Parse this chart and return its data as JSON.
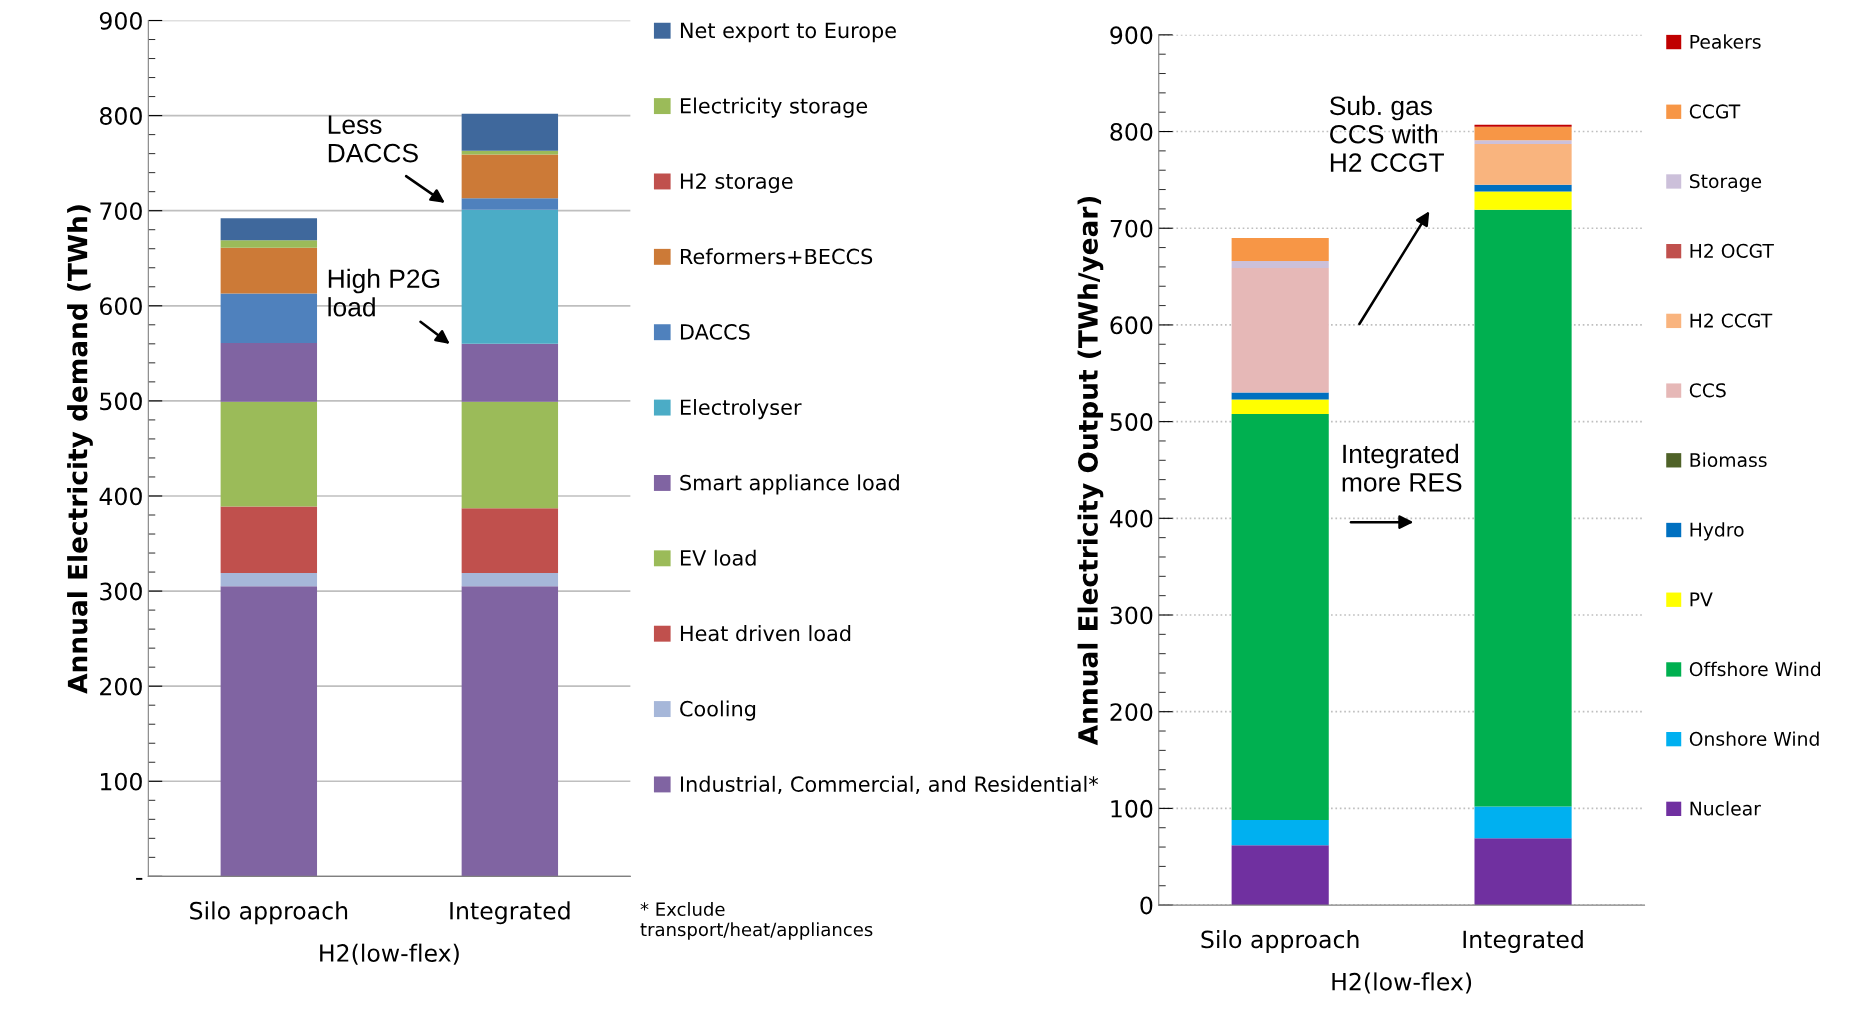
{
  "chart_data": [
    {
      "type": "bar",
      "stacked": true,
      "categories": [
        "Silo approach",
        "Integrated"
      ],
      "xlabel": "H2(low-flex)",
      "ylabel": "Annual Electricity demand (TWh)",
      "ylim": [
        0,
        900
      ],
      "yticks": [
        {
          "value": 0,
          "label": "-"
        },
        100,
        200,
        300,
        400,
        500,
        600,
        700,
        800,
        900
      ],
      "grid": "y",
      "legend": "right",
      "series": [
        {
          "name": "Industrial, Commercial, and Residential*",
          "color": "#8064a2",
          "values": [
            305,
            305
          ]
        },
        {
          "name": "Cooling",
          "color": "#a6b7d9",
          "values": [
            14,
            14
          ]
        },
        {
          "name": "Heat driven load",
          "color": "#c0504d",
          "values": [
            70,
            68
          ]
        },
        {
          "name": "EV load",
          "color": "#9bbb59",
          "values": [
            110,
            112
          ]
        },
        {
          "name": "Smart appliance load",
          "color": "#8064a2",
          "values": [
            62,
            61
          ]
        },
        {
          "name": "Electrolyser",
          "color": "#4bacc6",
          "values": [
            0,
            141
          ]
        },
        {
          "name": "DACCS",
          "color": "#4f81bd",
          "values": [
            52,
            12
          ]
        },
        {
          "name": "Reformers+BECCS",
          "color": "#cc7a37",
          "values": [
            48,
            46
          ]
        },
        {
          "name": "H2 storage",
          "color": "#c0504d",
          "values": [
            0,
            0
          ]
        },
        {
          "name": "Electricity storage",
          "color": "#9bbb59",
          "values": [
            8,
            4
          ]
        },
        {
          "name": "Net export to Europe",
          "color": "#3f689c",
          "values": [
            23,
            39
          ]
        }
      ],
      "annotations": [
        "Less\nDACCS",
        "High P2G\nload",
        "* Exclude\ntransport/heat/appliances"
      ]
    },
    {
      "type": "bar",
      "stacked": true,
      "categories": [
        "Silo approach",
        "Integrated"
      ],
      "xlabel": "H2(low-flex)",
      "ylabel": "Annual Electricity Output (TWh/year)",
      "ylim": [
        0,
        900
      ],
      "yticks": [
        0,
        100,
        200,
        300,
        400,
        500,
        600,
        700,
        800,
        900
      ],
      "grid": "y",
      "legend": "right",
      "series": [
        {
          "name": "Nuclear",
          "color": "#7030a0",
          "values": [
            62,
            69
          ]
        },
        {
          "name": "Onshore Wind",
          "color": "#00b0f0",
          "values": [
            26,
            33
          ]
        },
        {
          "name": "Offshore Wind",
          "color": "#00b050",
          "values": [
            420,
            617
          ]
        },
        {
          "name": "PV",
          "color": "#ffff00",
          "values": [
            15,
            19
          ]
        },
        {
          "name": "Hydro",
          "color": "#0070c0",
          "values": [
            7,
            7
          ]
        },
        {
          "name": "Biomass",
          "color": "#4f6228",
          "values": [
            0,
            0
          ]
        },
        {
          "name": "CCS",
          "color": "#e6b8b7",
          "values": [
            129,
            0
          ]
        },
        {
          "name": "H2 CCGT",
          "color": "#f9b47e",
          "values": [
            0,
            42
          ]
        },
        {
          "name": "H2 OCGT",
          "color": "#c0504d",
          "values": [
            0,
            0
          ]
        },
        {
          "name": "Storage",
          "color": "#ccc0da",
          "values": [
            7,
            4
          ]
        },
        {
          "name": "CCGT",
          "color": "#f79646",
          "values": [
            24,
            14
          ]
        },
        {
          "name": "Peakers",
          "color": "#c00000",
          "values": [
            0,
            2
          ]
        }
      ],
      "annotations": [
        "Sub. gas\nCCS with\nH2 CCGT",
        "Integrated\nmore RES"
      ]
    }
  ]
}
